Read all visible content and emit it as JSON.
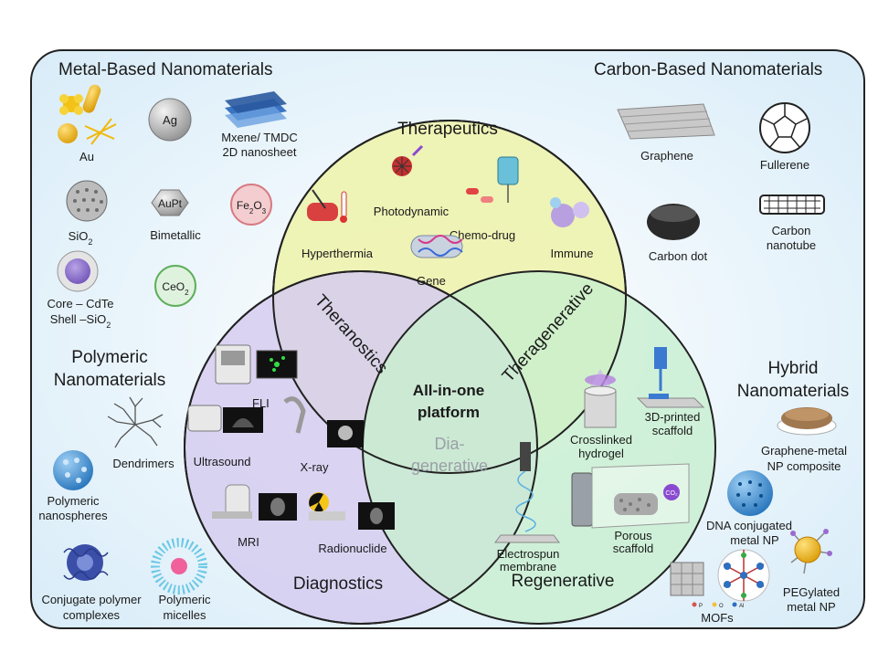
{
  "groups": {
    "metal": "Metal-Based Nanomaterials",
    "carbon": "Carbon-Based Nanomaterials",
    "polymeric_line1": "Polymeric",
    "polymeric_line2": "Nanomaterials",
    "hybrid_line1": "Hybrid",
    "hybrid_line2": "Nanomaterials"
  },
  "metal_items": {
    "au": "Au",
    "ag": "Ag",
    "mxene_line1": "Mxene/ TMDC",
    "mxene_line2": "2D nanosheet",
    "sio2_base": "SiO",
    "sio2_sub": "2",
    "aupt": "AuPt",
    "bimetallic": "Bimetallic",
    "fe_base": "Fe",
    "fe_sub1": "2",
    "fe_mid": "O",
    "fe_sub2": "3",
    "core_line1": "Core – CdTe",
    "core_line2_base": "Shell –SiO",
    "core_line2_sub": "2",
    "ceo_base": "CeO",
    "ceo_sub": "2"
  },
  "carbon_items": {
    "graphene": "Graphene",
    "fullerene": "Fullerene",
    "carbon_dot": "Carbon dot",
    "nanotube_line1": "Carbon",
    "nanotube_line2": "nanotube"
  },
  "polymeric_items": {
    "dendrimers": "Dendrimers",
    "nanospheres_line1": "Polymeric",
    "nanospheres_line2": "nanospheres",
    "conjugate_line1": "Conjugate polymer",
    "conjugate_line2": "complexes",
    "micelles_line1": "Polymeric",
    "micelles_line2": "micelles"
  },
  "hybrid_items": {
    "graphene_metal_line1": "Graphene-metal",
    "graphene_metal_line2": "NP composite",
    "dna_line1": "DNA conjugated",
    "dna_line2": "metal NP",
    "peg_line1": "PEGylated",
    "peg_line2": "metal NP",
    "mofs": "MOFs",
    "mof_legend_p": "P",
    "mof_legend_o": "O",
    "mof_legend_al": "Al"
  },
  "venn": {
    "therapeutics": "Therapeutics",
    "diagnostics": "Diagnostics",
    "regenerative": "Regenerative",
    "theranostics": "Theranostics",
    "theragenerative": "Theragenerative",
    "diagenerative_line1": "Dia-",
    "diagenerative_line2": "generative",
    "center_line1": "All-in-one",
    "center_line2": "platform"
  },
  "therapeutics_items": {
    "hyperthermia": "Hyperthermia",
    "photodynamic": "Photodynamic",
    "chemo": "Chemo-drug",
    "gene": "Gene",
    "immune": "Immune"
  },
  "diagnostics_items": {
    "fli": "FLI",
    "ultrasound": "Ultrasound",
    "xray": "X-ray",
    "mri": "MRI",
    "radionuclide": "Radionuclide"
  },
  "regenerative_items": {
    "crosslinked_line1": "Crosslinked",
    "crosslinked_line2": "hydrogel",
    "printed_line1": "3D-printed",
    "printed_line2": "scaffold",
    "electrospun_line1": "Electrospun",
    "electrospun_line2": "membrane",
    "porous_line1": "Porous",
    "porous_line2": "scaffold",
    "co2": "CO₂"
  },
  "colors": {
    "therapeutics_fill": "#eef2b0",
    "diagnostics_fill": "#d6ccf0",
    "regenerative_fill": "#c8efcf",
    "panel_fill": "#e4f1fa",
    "outline": "#222222",
    "dia_text": "#9aa0a8"
  }
}
